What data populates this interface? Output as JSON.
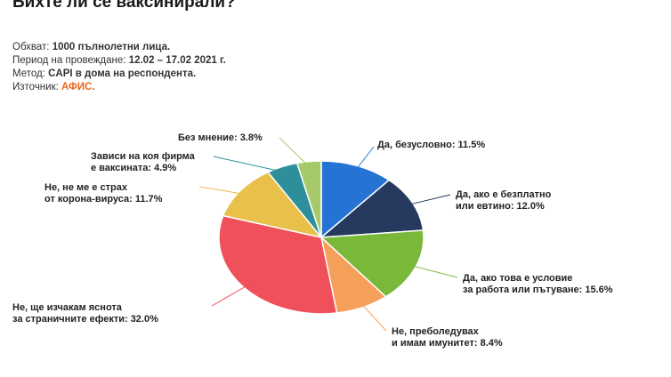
{
  "title": "Бихте ли се ваксинирали?",
  "meta": [
    {
      "label": "Обхват:",
      "value": "1000 пълнолетни лица."
    },
    {
      "label": "Период на провеждане:",
      "value": "12.02 – 17.02 2021 г."
    },
    {
      "label": "Метод:",
      "value": "CAPI в дома на респондента."
    },
    {
      "label": "Източник:",
      "value": "АФИС."
    }
  ],
  "colors": {
    "accent": "#e8671c"
  },
  "chart_data": {
    "type": "pie",
    "title": "Бихте ли се ваксинирали?",
    "slices": [
      {
        "label": "Да, безусловно: 11.5%",
        "value": 11.5,
        "color": "#2574d4"
      },
      {
        "label": "Да, ако е безплатно\nили евтино: 12.0%",
        "value": 12.0,
        "color": "#253a5e"
      },
      {
        "label": "Да, ако това е условие\nза работа или пътуване: 15.6%",
        "value": 15.6,
        "color": "#7ab83a"
      },
      {
        "label": "Не, преболедувах\nи имам имунитет: 8.4%",
        "value": 8.4,
        "color": "#f5a05a"
      },
      {
        "label": "Не, ще изчакам яснота\nза страничните ефекти: 32.0%",
        "value": 32.0,
        "color": "#f0505a"
      },
      {
        "label": "Не, не ме е страх\nот корона-вируса: 11.7%",
        "value": 11.7,
        "color": "#e8c04a"
      },
      {
        "label": "Зависи на коя фирма\nе ваксината: 4.9%",
        "value": 4.9,
        "color": "#2e8f9a"
      },
      {
        "label": "Без мнение: 3.8%",
        "value": 3.8,
        "color": "#a6c96a"
      }
    ]
  }
}
